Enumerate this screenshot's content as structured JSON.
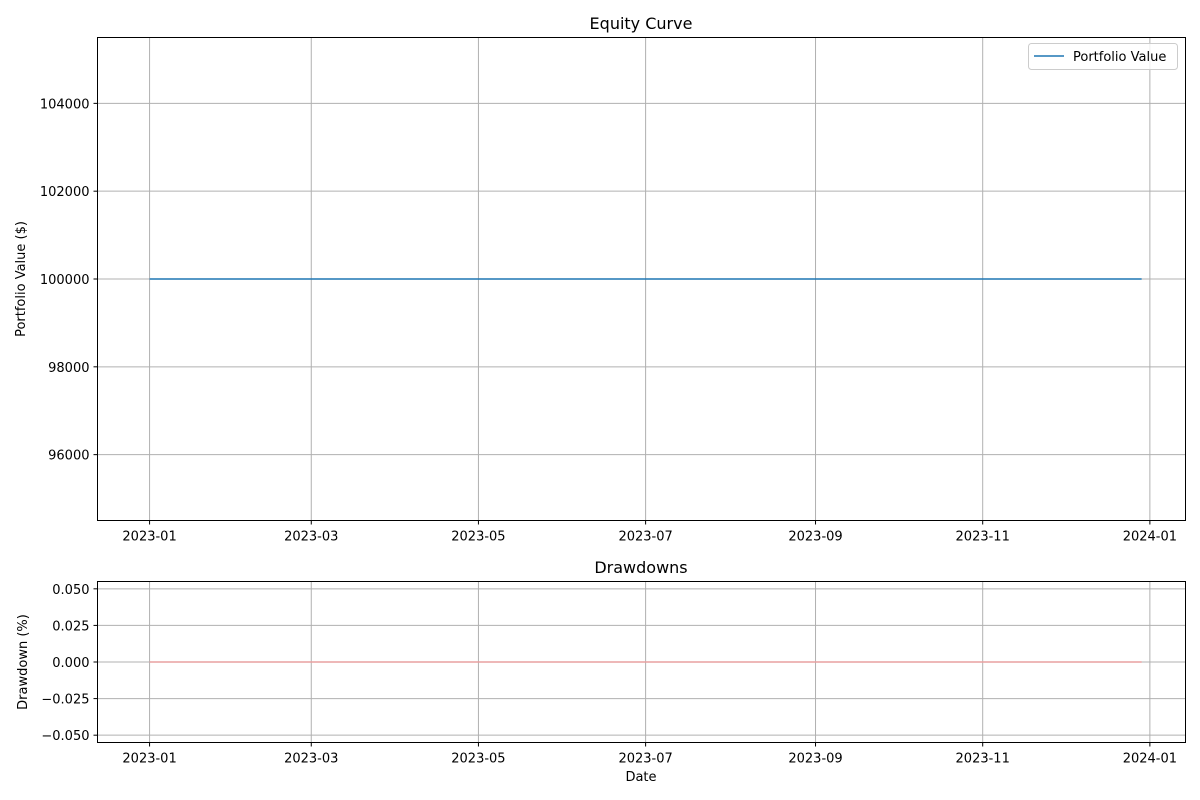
{
  "chart_data": [
    {
      "type": "line",
      "title": "Equity Curve",
      "xlabel": "",
      "ylabel": "Portfolio Value ($)",
      "xlim": [
        "2022-12-13",
        "2024-01-14"
      ],
      "ylim": [
        94500,
        105500
      ],
      "x_ticks": [
        "2023-01",
        "2023-03",
        "2023-05",
        "2023-07",
        "2023-09",
        "2023-11",
        "2024-01"
      ],
      "y_ticks": [
        96000,
        98000,
        100000,
        102000,
        104000
      ],
      "y_tick_labels": [
        "96000",
        "98000",
        "100000",
        "102000",
        "104000"
      ],
      "grid": true,
      "legend": "top-right",
      "series": [
        {
          "name": "Portfolio Value",
          "color": "#1f77b4",
          "x": [
            "2023-01-01",
            "2023-12-29"
          ],
          "values": [
            100000,
            100000
          ]
        }
      ]
    },
    {
      "type": "line",
      "title": "Drawdowns",
      "xlabel": "Date",
      "ylabel": "Drawdown (%)",
      "xlim": [
        "2022-12-13",
        "2024-01-14"
      ],
      "ylim": [
        -0.055,
        0.055
      ],
      "x_ticks": [
        "2023-01",
        "2023-03",
        "2023-05",
        "2023-07",
        "2023-09",
        "2023-11",
        "2024-01"
      ],
      "y_ticks": [
        -0.05,
        -0.025,
        0,
        0.025,
        0.05
      ],
      "y_tick_labels": [
        "−0.050",
        "−0.025",
        "0.000",
        "0.025",
        "0.050"
      ],
      "grid": true,
      "series": [
        {
          "color": "#e8a0a0",
          "x": [
            "2023-01-01",
            "2023-12-29"
          ],
          "values": [
            0,
            0
          ]
        }
      ]
    }
  ]
}
